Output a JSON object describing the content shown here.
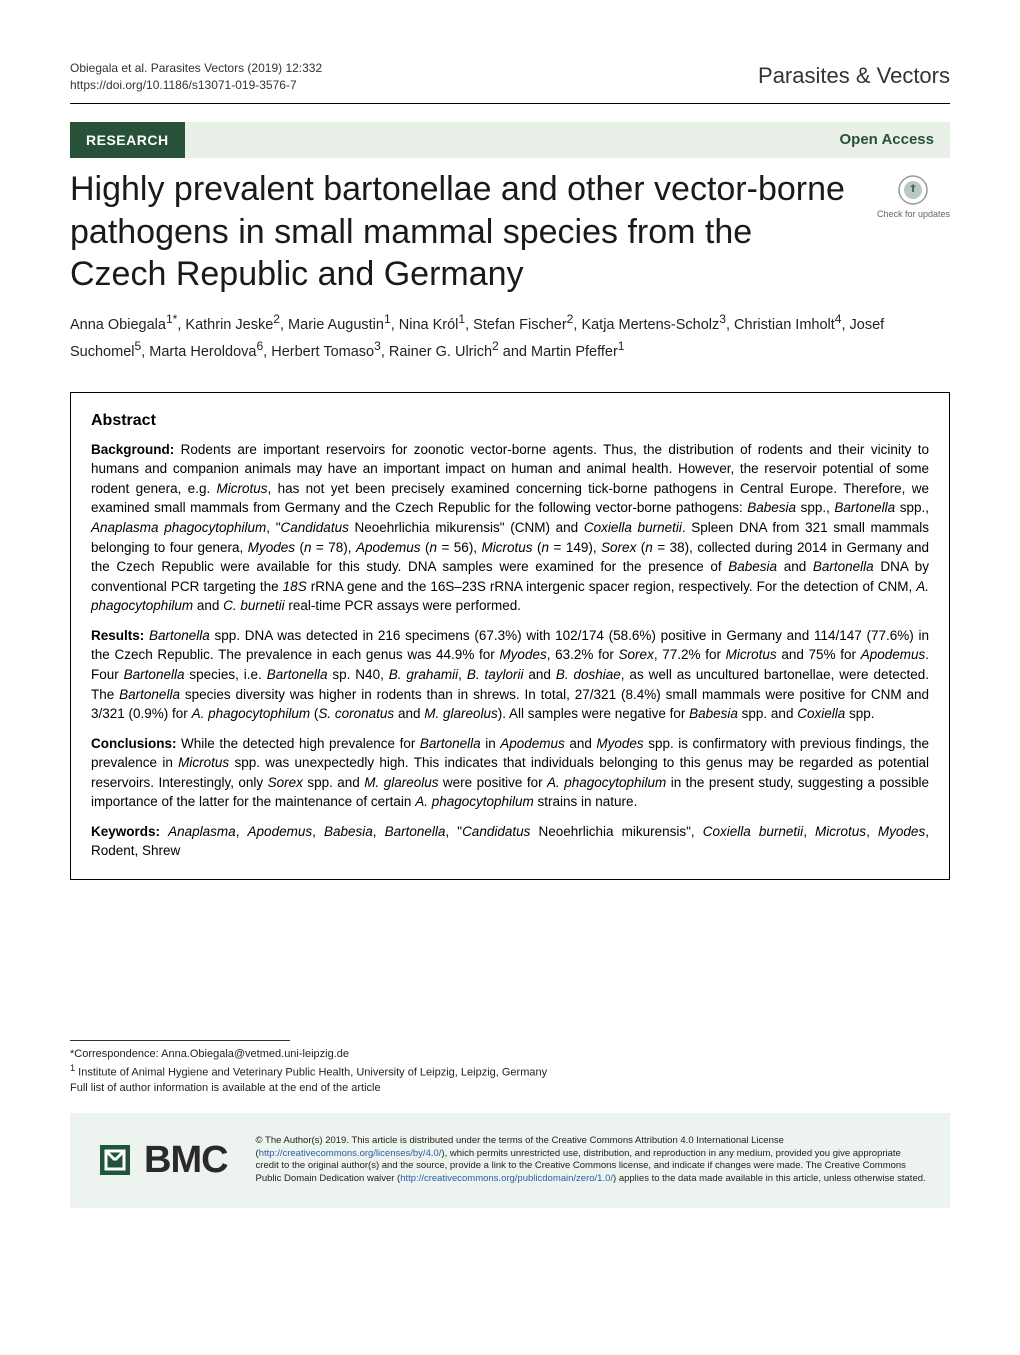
{
  "header": {
    "citation": "Obiegala et al. Parasites Vectors        (2019) 12:332",
    "doi": "https://doi.org/10.1186/s13071-019-3576-7",
    "journal": "Parasites & Vectors"
  },
  "research_bar": {
    "label": "RESEARCH",
    "open_access": "Open Access"
  },
  "title": "Highly prevalent bartonellae and other vector-borne pathogens in small mammal species from the Czech Republic and Germany",
  "check_updates": "Check for updates",
  "authors_html": "Anna Obiegala<sup>1*</sup>, Kathrin Jeske<sup>2</sup>, Marie Augustin<sup>1</sup>, Nina Król<sup>1</sup>, Stefan Fischer<sup>2</sup>, Katja Mertens-Scholz<sup>3</sup>, Christian Imholt<sup>4</sup>, Josef Suchomel<sup>5</sup>, Marta Heroldova<sup>6</sup>, Herbert Tomaso<sup>3</sup>, Rainer G. Ulrich<sup>2</sup> and Martin Pfeffer<sup>1</sup>",
  "abstract": {
    "heading": "Abstract",
    "background_label": "Background:",
    "background_html": "Rodents are important reservoirs for zoonotic vector-borne agents. Thus, the distribution of rodents and their vicinity to humans and companion animals may have an important impact on human and animal health. However, the reservoir potential of some rodent genera, e.g. <span class=\"italic\">Microtus</span>, has not yet been precisely examined concerning tick-borne pathogens in Central Europe. Therefore, we examined small mammals from Germany and the Czech Republic for the following vector-borne pathogens: <span class=\"italic\">Babesia</span> spp., <span class=\"italic\">Bartonella</span> spp., <span class=\"italic\">Anaplasma phagocytophilum</span>, \"<span class=\"italic\">Candidatus</span> Neoehrlichia mikurensis\" (CNM) and <span class=\"italic\">Coxiella burnetii</span>. Spleen DNA from 321 small mammals belonging to four genera, <span class=\"italic\">Myodes</span> (<span class=\"italic\">n</span> = 78), <span class=\"italic\">Apodemus</span> (<span class=\"italic\">n</span> = 56), <span class=\"italic\">Microtus</span> (<span class=\"italic\">n</span> = 149), <span class=\"italic\">Sorex</span> (<span class=\"italic\">n</span> = 38), collected during 2014 in Germany and the Czech Republic were available for this study. DNA samples were examined for the presence of <span class=\"italic\">Babesia</span> and <span class=\"italic\">Bartonella</span> DNA by conventional PCR targeting the <span class=\"italic\">18S</span> rRNA gene and the 16S–23S rRNA intergenic spacer region, respectively. For the detection of CNM, <span class=\"italic\">A. phagocytophilum</span> and <span class=\"italic\">C. burnetii</span> real-time PCR assays were performed.",
    "results_label": "Results:",
    "results_html": "<span class=\"italic\">Bartonella</span> spp. DNA was detected in 216 specimens (67.3%) with 102/174 (58.6%) positive in Germany and 114/147 (77.6%) in the Czech Republic. The prevalence in each genus was 44.9% for <span class=\"italic\">Myodes</span>, 63.2% for <span class=\"italic\">Sorex</span>, 77.2% for <span class=\"italic\">Microtus</span> and 75% for <span class=\"italic\">Apodemus</span>. Four <span class=\"italic\">Bartonella</span> species, i.e. <span class=\"italic\">Bartonella</span> sp. N40, <span class=\"italic\">B. grahamii</span>, <span class=\"italic\">B. taylorii</span> and <span class=\"italic\">B. doshiae</span>, as well as uncultured bartonellae, were detected. The <span class=\"italic\">Bartonella</span> species diversity was higher in rodents than in shrews. In total, 27/321 (8.4%) small mammals were positive for CNM and 3/321 (0.9%) for <span class=\"italic\">A. phagocytophilum</span> (<span class=\"italic\">S. coronatus</span> and <span class=\"italic\">M. glareolus</span>). All samples were negative for <span class=\"italic\">Babesia</span> spp. and <span class=\"italic\">Coxiella</span> spp.",
    "conclusions_label": "Conclusions:",
    "conclusions_html": "While the detected high prevalence for <span class=\"italic\">Bartonella</span> in <span class=\"italic\">Apodemus</span> and <span class=\"italic\">Myodes</span> spp. is confirmatory with previous findings, the prevalence in <span class=\"italic\">Microtus</span> spp. was unexpectedly high. This indicates that individuals belonging to this genus may be regarded as potential reservoirs. Interestingly, only <span class=\"italic\">Sorex</span> spp. and <span class=\"italic\">M. glareolus</span> were positive for <span class=\"italic\">A. phagocytophilum</span> in the present study, suggesting a possible importance of the latter for the maintenance of certain <span class=\"italic\">A. phagocytophilum</span> strains in nature.",
    "keywords_label": "Keywords:",
    "keywords_html": "<span class=\"italic\">Anaplasma</span>, <span class=\"italic\">Apodemus</span>, <span class=\"italic\">Babesia</span>, <span class=\"italic\">Bartonella</span>, \"<span class=\"italic\">Candidatus</span> Neoehrlichia mikurensis\", <span class=\"italic\">Coxiella burnetii</span>, <span class=\"italic\">Microtus</span>, <span class=\"italic\">Myodes</span>, Rodent, Shrew"
  },
  "correspondence": {
    "line1": "*Correspondence:  Anna.Obiegala@vetmed.uni-leipzig.de",
    "line2_html": "<sup>1</sup> Institute of Animal Hygiene and Veterinary Public Health, University of Leipzig, Leipzig, Germany",
    "line3": "Full list of author information is available at the end of the article"
  },
  "footer": {
    "bmc": "BMC",
    "license_html": "© The Author(s) 2019. This article is distributed under the terms of the Creative Commons Attribution 4.0 International License (<a href=\"#\">http://creativecommons.org/licenses/by/4.0/</a>), which permits unrestricted use, distribution, and reproduction in any medium, provided you give appropriate credit to the original author(s) and the source, provide a link to the Creative Commons license, and indicate if changes were made. The Creative Commons Public Domain Dedication waiver (<a href=\"#\">http://creativecommons.org/publicdomain/zero/1.0/</a>) applies to the data made available in this article, unless otherwise stated."
  },
  "colors": {
    "brand_green": "#285238",
    "light_green_bg": "#edf3ee",
    "bar_bg": "#e8f0e8",
    "link": "#2a5caa"
  }
}
